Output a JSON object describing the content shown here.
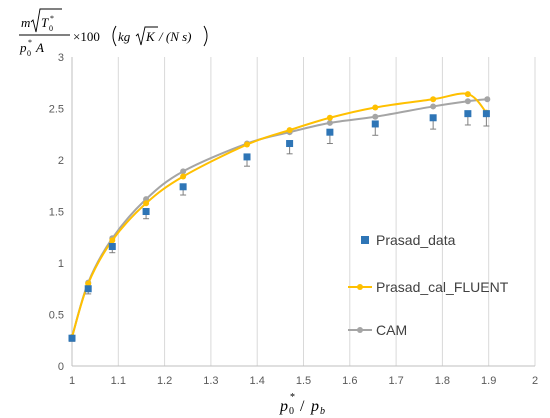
{
  "chart_data": {
    "type": "scatter",
    "ylabel_parts": {
      "num_m": "m",
      "num_T": "T",
      "num_sub": "0",
      "num_sup": "*",
      "den_p": "p",
      "den_sub": "0",
      "den_sup": "*",
      "den_A": "A",
      "times": "×100",
      "units_kg": "kg",
      "units_K": "K",
      "units_rest": "/ (N  s)"
    },
    "xlabel_parts": {
      "p": "p",
      "sub": "0",
      "sup": "*",
      "slash": " / ",
      "pb": "p",
      "pb_sub": "b"
    },
    "xlim": [
      1,
      2
    ],
    "ylim": [
      0,
      3
    ],
    "x_ticks": [
      1,
      1.1,
      1.2,
      1.3,
      1.4,
      1.5,
      1.6,
      1.7,
      1.8,
      1.9,
      2
    ],
    "x_tick_labels": [
      "1",
      "1.1",
      "1.2",
      "1.3",
      "1.4",
      "1.5",
      "1.6",
      "1.7",
      "1.8",
      "1.9",
      "2"
    ],
    "y_ticks": [
      0,
      0.5,
      1,
      1.5,
      2,
      2.5,
      3
    ],
    "y_tick_labels": [
      "0",
      "0.5",
      "1",
      "1.5",
      "2",
      "2.5",
      "3"
    ],
    "grid": "vertical",
    "legend_position": "right",
    "series": [
      {
        "name": "Prasad_data",
        "style": "markers",
        "color": "#2e75b6",
        "x": [
          1.0,
          1.035,
          1.087,
          1.16,
          1.24,
          1.378,
          1.47,
          1.557,
          1.655,
          1.78,
          1.855,
          1.895
        ],
        "y": [
          0.27,
          0.75,
          1.16,
          1.5,
          1.74,
          2.03,
          2.16,
          2.27,
          2.35,
          2.41,
          2.45,
          2.45
        ],
        "err_low": [
          0.03,
          0.05,
          0.06,
          0.07,
          0.08,
          0.09,
          0.1,
          0.11,
          0.11,
          0.11,
          0.11,
          0.12
        ],
        "err_high": [
          0,
          0,
          0,
          0,
          0,
          0,
          0,
          0,
          0,
          0,
          0,
          0
        ]
      },
      {
        "name": "Prasad_cal_FLUENT",
        "style": "smooth-line-markers",
        "color": "#ffc000",
        "x": [
          1.0,
          1.035,
          1.087,
          1.16,
          1.24,
          1.378,
          1.47,
          1.557,
          1.655,
          1.78,
          1.855,
          1.895
        ],
        "y": [
          0.28,
          0.8,
          1.22,
          1.58,
          1.84,
          2.15,
          2.29,
          2.41,
          2.51,
          2.59,
          2.64,
          2.46
        ]
      },
      {
        "name": "CAM",
        "style": "smooth-line-markers",
        "color": "#a5a5a5",
        "x": [
          1.0,
          1.035,
          1.087,
          1.16,
          1.24,
          1.378,
          1.47,
          1.557,
          1.655,
          1.78,
          1.855,
          1.897
        ],
        "y": [
          0.28,
          0.81,
          1.24,
          1.62,
          1.89,
          2.16,
          2.27,
          2.36,
          2.42,
          2.52,
          2.57,
          2.59
        ]
      }
    ]
  }
}
